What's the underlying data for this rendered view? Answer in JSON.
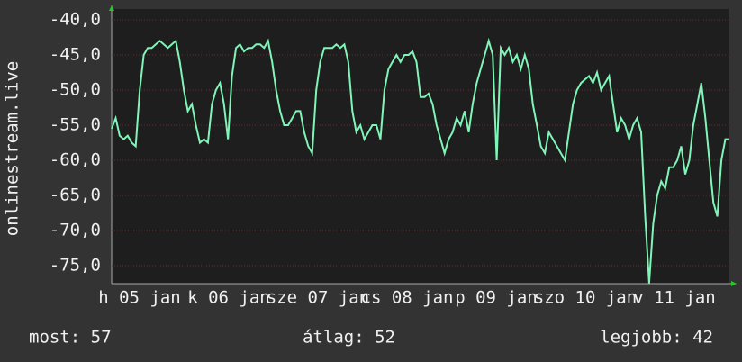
{
  "chart_data": {
    "type": "line",
    "y_label": "onlinestream.live",
    "xtick_labels": [
      "h 05 jan",
      "k 06 jan",
      "sze 07 jan",
      "cs 08 jan",
      "p 09 jan",
      "szo 10 jan",
      "v 11 jan"
    ],
    "series": [
      {
        "name": "onlinestream.live",
        "color": "#7ff5b8",
        "values": [
          -55.5,
          -54,
          -56.5,
          -57,
          -56.5,
          -57.5,
          -58,
          -50,
          -45,
          -44,
          -44,
          -43.5,
          -43,
          -43.5,
          -44,
          -43.5,
          -43,
          -46,
          -50,
          -53,
          -52,
          -55,
          -57.5,
          -57,
          -57.5,
          -52,
          -50,
          -49,
          -52,
          -57,
          -48,
          -44,
          -43.5,
          -44.5,
          -44,
          -44,
          -43.5,
          -43.5,
          -44,
          -43,
          -46,
          -50,
          -53,
          -55,
          -55,
          -54,
          -53,
          -53,
          -56,
          -58,
          -59,
          -50,
          -46,
          -44,
          -44,
          -44,
          -43.5,
          -44,
          -43.5,
          -46,
          -53,
          -56,
          -55,
          -57,
          -56,
          -55,
          -55,
          -57,
          -50,
          -47,
          -46,
          -45,
          -46,
          -45,
          -45,
          -44.5,
          -46,
          -51,
          -51,
          -50.5,
          -52,
          -55,
          -57,
          -59,
          -57,
          -56,
          -54,
          -55,
          -53,
          -56,
          -52,
          -49,
          -47,
          -45,
          -43,
          -45,
          -60,
          -44,
          -45,
          -44,
          -46,
          -45,
          -47,
          -45,
          -47,
          -52,
          -55,
          -58,
          -59,
          -56,
          -57,
          -58,
          -59,
          -60,
          -56,
          -52,
          -50,
          -49,
          -48.5,
          -48,
          -49,
          -47.5,
          -50,
          -49,
          -48,
          -52,
          -56,
          -54,
          -55,
          -57,
          -55,
          -54,
          -56,
          -68,
          -77.5,
          -69,
          -65,
          -63,
          -64,
          -61,
          -61,
          -60,
          -58,
          -62,
          -60,
          -55,
          -52,
          -49,
          -54,
          -60,
          -66,
          -68,
          -60,
          -57,
          -57
        ]
      }
    ],
    "ylim": [
      -77.56,
      -38.46
    ],
    "yticks": [
      {
        "value": -75,
        "label": "-75,0"
      },
      {
        "value": -70,
        "label": "-70,0"
      },
      {
        "value": -65,
        "label": "-65,0"
      },
      {
        "value": -60,
        "label": "-60,0"
      },
      {
        "value": -55,
        "label": "-55,0"
      },
      {
        "value": -50,
        "label": "-50,0"
      },
      {
        "value": -45,
        "label": "-45,0"
      },
      {
        "value": -40,
        "label": "-40,0"
      }
    ],
    "grid": true,
    "footer": [
      "most: 57",
      "átlag: 52",
      "legjobb: 42"
    ]
  }
}
